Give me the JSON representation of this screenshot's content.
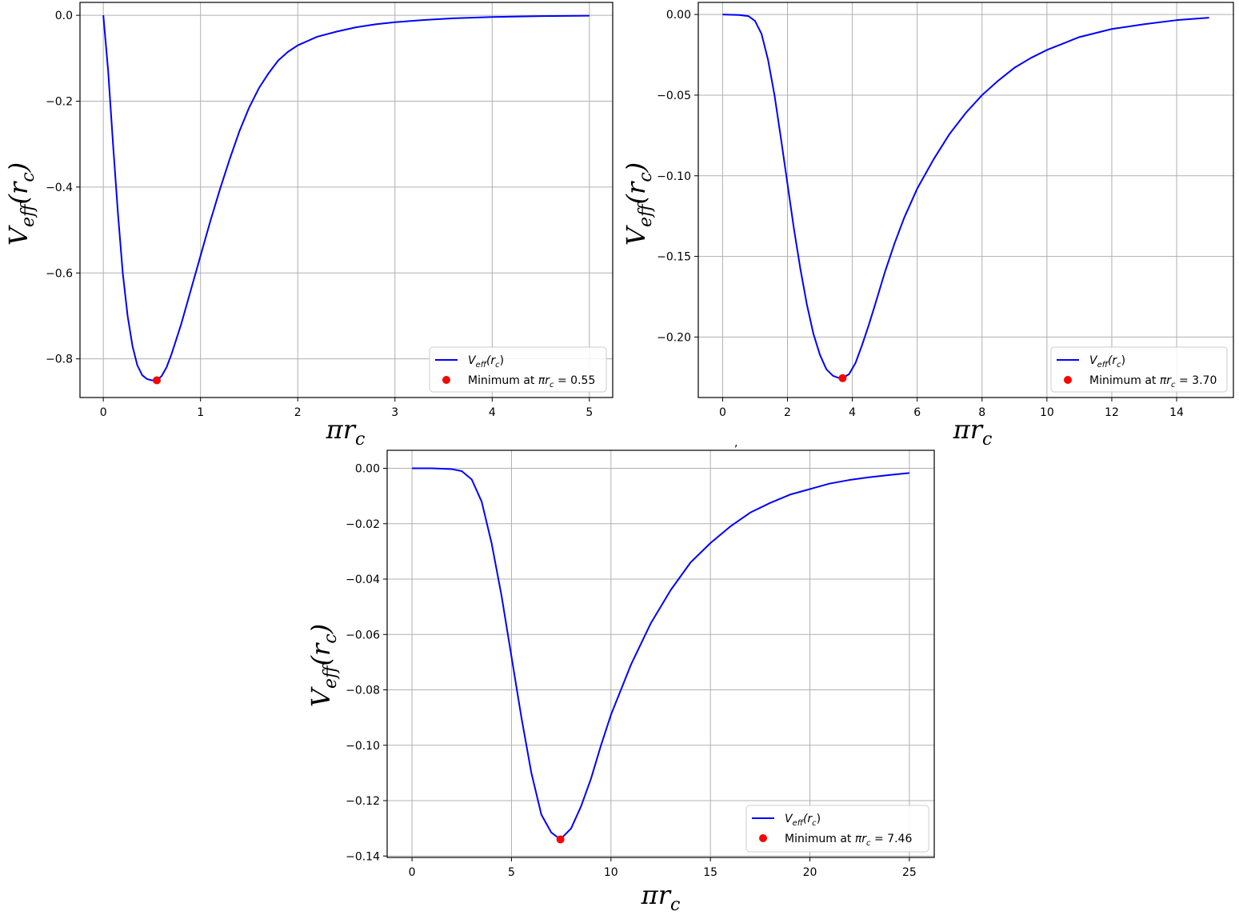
{
  "chart_data": [
    {
      "type": "line",
      "xlabel": "πr",
      "xlabel_sub": "c",
      "ylabel": "V",
      "ylabel_sub": "eff",
      "ylabel_paren": "(r",
      "ylabel_paren_sub": "c",
      "ylabel_close": ")",
      "xlim": [
        -0.24,
        5.24
      ],
      "ylim": [
        -0.89,
        0.03
      ],
      "xticks": [
        0,
        1,
        2,
        3,
        4,
        5
      ],
      "xtick_labels": [
        "0",
        "1",
        "2",
        "3",
        "4",
        "5"
      ],
      "yticks": [
        0.0,
        -0.2,
        -0.4,
        -0.6,
        -0.8
      ],
      "ytick_labels": [
        "0.0",
        "−0.2",
        "−0.4",
        "−0.6",
        "−0.8"
      ],
      "grid": true,
      "legend_position": "lower-right",
      "line_color": "#0000ff",
      "point_color": "#ff0000",
      "series": [
        {
          "name": "V_eff(r_c)",
          "x": [
            0,
            0.05,
            0.1,
            0.15,
            0.2,
            0.25,
            0.3,
            0.35,
            0.4,
            0.45,
            0.5,
            0.55,
            0.6,
            0.65,
            0.7,
            0.75,
            0.8,
            0.9,
            1.0,
            1.1,
            1.2,
            1.3,
            1.4,
            1.5,
            1.6,
            1.7,
            1.8,
            1.9,
            2.0,
            2.2,
            2.4,
            2.6,
            2.8,
            3.0,
            3.3,
            3.6,
            4.0,
            4.5,
            5.0
          ],
          "y": [
            0.0,
            -0.13,
            -0.3,
            -0.46,
            -0.6,
            -0.7,
            -0.77,
            -0.815,
            -0.838,
            -0.847,
            -0.85,
            -0.85,
            -0.84,
            -0.82,
            -0.79,
            -0.755,
            -0.72,
            -0.64,
            -0.56,
            -0.48,
            -0.405,
            -0.335,
            -0.27,
            -0.215,
            -0.17,
            -0.135,
            -0.105,
            -0.085,
            -0.07,
            -0.05,
            -0.038,
            -0.028,
            -0.021,
            -0.016,
            -0.011,
            -0.007,
            -0.004,
            -0.002,
            -0.001
          ]
        }
      ],
      "minimum": {
        "label_prefix": "Minimum at ",
        "label_var": "πr",
        "label_var_sub": "c",
        "label_value": " = 0.55",
        "x": 0.55,
        "y": -0.85
      },
      "legend_line_label": "V",
      "legend_line_sub": "eff",
      "legend_line_paren": "(r",
      "legend_line_paren_sub": "c",
      "legend_line_close": ")"
    },
    {
      "type": "line",
      "xlabel": "πr",
      "xlabel_sub": "c",
      "ylabel": "V",
      "ylabel_sub": "eff",
      "ylabel_paren": "(r",
      "ylabel_paren_sub": "c",
      "ylabel_close": ")",
      "xlim": [
        -0.75,
        15.75
      ],
      "ylim": [
        -0.2375,
        0.0075
      ],
      "xticks": [
        0,
        2,
        4,
        6,
        8,
        10,
        12,
        14
      ],
      "xtick_labels": [
        "0",
        "2",
        "4",
        "6",
        "8",
        "10",
        "12",
        "14"
      ],
      "yticks": [
        0.0,
        -0.05,
        -0.1,
        -0.15,
        -0.2
      ],
      "ytick_labels": [
        "0.00",
        "−0.05",
        "−0.10",
        "−0.15",
        "−0.20"
      ],
      "grid": true,
      "legend_position": "lower-right",
      "line_color": "#0000ff",
      "point_color": "#ff0000",
      "series": [
        {
          "name": "V_eff(r_c)",
          "x": [
            0,
            0.5,
            0.8,
            1.0,
            1.2,
            1.4,
            1.6,
            1.8,
            2.0,
            2.2,
            2.4,
            2.6,
            2.8,
            3.0,
            3.2,
            3.4,
            3.6,
            3.7,
            3.9,
            4.1,
            4.3,
            4.5,
            4.7,
            5.0,
            5.3,
            5.6,
            6.0,
            6.5,
            7.0,
            7.5,
            8.0,
            8.5,
            9.0,
            9.5,
            10.0,
            10.5,
            11.0,
            12.0,
            13.0,
            14.0,
            15.0
          ],
          "y": [
            0.0,
            -0.0003,
            -0.001,
            -0.004,
            -0.012,
            -0.028,
            -0.05,
            -0.077,
            -0.105,
            -0.133,
            -0.158,
            -0.18,
            -0.198,
            -0.211,
            -0.22,
            -0.224,
            -0.2255,
            -0.2255,
            -0.223,
            -0.216,
            -0.205,
            -0.193,
            -0.18,
            -0.16,
            -0.142,
            -0.126,
            -0.108,
            -0.09,
            -0.074,
            -0.061,
            -0.05,
            -0.041,
            -0.033,
            -0.027,
            -0.022,
            -0.018,
            -0.014,
            -0.009,
            -0.006,
            -0.0035,
            -0.002
          ]
        }
      ],
      "minimum": {
        "label_prefix": "Minimum at ",
        "label_var": "πr",
        "label_var_sub": "c",
        "label_value": " = 3.70",
        "x": 3.7,
        "y": -0.2255
      },
      "legend_line_label": "V",
      "legend_line_sub": "eff",
      "legend_line_paren": "(r",
      "legend_line_paren_sub": "c",
      "legend_line_close": ")"
    },
    {
      "type": "line",
      "xlabel": "πr",
      "xlabel_sub": "c",
      "ylabel": "V",
      "ylabel_sub": "eff",
      "ylabel_paren": "(r",
      "ylabel_paren_sub": "c",
      "ylabel_close": ")",
      "xlim": [
        -1.25,
        26.25
      ],
      "ylim": [
        -0.1405,
        0.0065
      ],
      "xticks": [
        0,
        5,
        10,
        15,
        20,
        25
      ],
      "xtick_labels": [
        "0",
        "5",
        "10",
        "15",
        "20",
        "25"
      ],
      "yticks": [
        0.0,
        -0.02,
        -0.04,
        -0.06,
        -0.08,
        -0.1,
        -0.12,
        -0.14
      ],
      "ytick_labels": [
        "0.00",
        "−0.02",
        "−0.04",
        "−0.06",
        "−0.08",
        "−0.10",
        "−0.12",
        "−0.14"
      ],
      "grid": true,
      "legend_position": "lower-right",
      "line_color": "#0000ff",
      "point_color": "#ff0000",
      "series": [
        {
          "name": "V_eff(r_c)",
          "x": [
            0,
            1.0,
            2.0,
            2.5,
            3.0,
            3.5,
            4.0,
            4.5,
            5.0,
            5.5,
            6.0,
            6.5,
            7.0,
            7.46,
            8.0,
            8.5,
            9.0,
            9.5,
            10.0,
            11.0,
            12.0,
            13.0,
            14.0,
            15.0,
            16.0,
            17.0,
            18.0,
            19.0,
            20.0,
            21.0,
            22.0,
            23.0,
            24.0,
            25.0
          ],
          "y": [
            0.0,
            0.0,
            -0.0003,
            -0.001,
            -0.004,
            -0.012,
            -0.027,
            -0.046,
            -0.068,
            -0.09,
            -0.11,
            -0.125,
            -0.1315,
            -0.134,
            -0.13,
            -0.122,
            -0.112,
            -0.1,
            -0.089,
            -0.071,
            -0.056,
            -0.044,
            -0.034,
            -0.027,
            -0.021,
            -0.016,
            -0.0125,
            -0.0095,
            -0.0075,
            -0.0055,
            -0.0042,
            -0.0032,
            -0.0024,
            -0.0017
          ]
        }
      ],
      "minimum": {
        "label_prefix": "Minimum at ",
        "label_var": "πr",
        "label_var_sub": "c",
        "label_value": " = 7.46",
        "x": 7.46,
        "y": -0.134
      },
      "legend_line_label": "V",
      "legend_line_sub": "eff",
      "legend_line_paren": "(r",
      "legend_line_paren_sub": "c",
      "legend_line_close": ")"
    }
  ],
  "stray_mark": ","
}
